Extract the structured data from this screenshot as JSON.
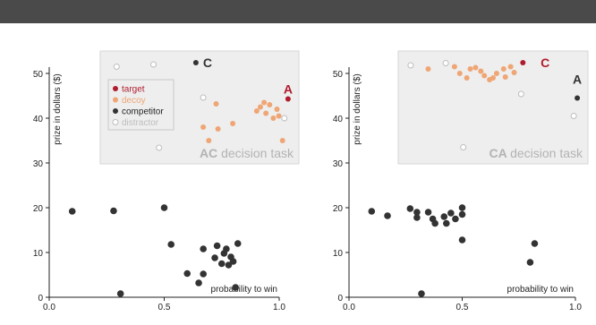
{
  "colors": {
    "target": "#b01c2e",
    "decoy": "#efa574",
    "competitor": "#333333",
    "distractor": "#bdbdbd",
    "inset_bg": "#eeeeee",
    "inset_border": "#d6d6d6",
    "title_gray": "#b3b3b3"
  },
  "legend": {
    "target": "target",
    "decoy": "decoy",
    "competitor": "competitor",
    "distractor": "distractor"
  },
  "chart_data": [
    {
      "type": "scatter",
      "xlabel": "probability to win",
      "ylabel": "prize in dollars ($)",
      "xlim": [
        0,
        1
      ],
      "ylim": [
        0,
        55
      ],
      "xticks": [
        "0.0",
        "0.5",
        "1.0"
      ],
      "yticks": [
        "0",
        "10",
        "20",
        "30",
        "40",
        "50"
      ],
      "main_points": [
        [
          0.1,
          19.2
        ],
        [
          0.28,
          19.3
        ],
        [
          0.31,
          0.8
        ],
        [
          0.5,
          20.0
        ],
        [
          0.53,
          11.8
        ],
        [
          0.6,
          5.3
        ],
        [
          0.65,
          3.2
        ],
        [
          0.67,
          10.8
        ],
        [
          0.67,
          5.2
        ],
        [
          0.72,
          8.8
        ],
        [
          0.73,
          11.5
        ],
        [
          0.75,
          7.5
        ],
        [
          0.76,
          9.8
        ],
        [
          0.77,
          10.8
        ],
        [
          0.78,
          7.2
        ],
        [
          0.79,
          9.0
        ],
        [
          0.8,
          8.0
        ],
        [
          0.81,
          2.2
        ],
        [
          0.82,
          12.0
        ]
      ],
      "inset": {
        "title_bold": "AC",
        "title_rest": "decision task",
        "letters": [
          {
            "text": "C",
            "x": 0.48,
            "y": 52.4,
            "role": "competitor"
          },
          {
            "text": "A",
            "x": 0.98,
            "y": 44.3,
            "role": "target"
          }
        ],
        "target": [
          [
            0.98,
            44.3
          ]
        ],
        "competitor": [
          [
            0.48,
            52.4
          ]
        ],
        "decoy": [
          [
            0.59,
            43.2
          ],
          [
            0.52,
            38.0
          ],
          [
            0.55,
            35.0
          ],
          [
            0.6,
            37.6
          ],
          [
            0.68,
            38.8
          ],
          [
            0.81,
            41.6
          ],
          [
            0.85,
            43.5
          ],
          [
            0.88,
            43.0
          ],
          [
            0.86,
            41.1
          ],
          [
            0.9,
            40.0
          ],
          [
            0.83,
            42.5
          ],
          [
            0.92,
            42.0
          ],
          [
            0.95,
            35.0
          ],
          [
            0.93,
            40.5
          ]
        ],
        "distractor": [
          [
            0.05,
            51.5
          ],
          [
            0.25,
            52.0
          ],
          [
            0.28,
            33.4
          ],
          [
            0.52,
            44.6
          ],
          [
            0.96,
            40.0
          ]
        ]
      }
    },
    {
      "type": "scatter",
      "xlabel": "probability to win",
      "ylabel": "prize in dollars ($)",
      "xlim": [
        0,
        1
      ],
      "ylim": [
        0,
        55
      ],
      "xticks": [
        "0.0",
        "0.5",
        "1.0"
      ],
      "yticks": [
        "0",
        "10",
        "20",
        "30",
        "40",
        "50"
      ],
      "main_points": [
        [
          0.1,
          19.2
        ],
        [
          0.17,
          18.2
        ],
        [
          0.27,
          19.8
        ],
        [
          0.3,
          19.0
        ],
        [
          0.3,
          17.8
        ],
        [
          0.35,
          19.0
        ],
        [
          0.37,
          17.5
        ],
        [
          0.38,
          16.5
        ],
        [
          0.42,
          18.0
        ],
        [
          0.43,
          16.5
        ],
        [
          0.45,
          18.8
        ],
        [
          0.47,
          17.5
        ],
        [
          0.5,
          20.0
        ],
        [
          0.5,
          18.5
        ],
        [
          0.5,
          12.8
        ],
        [
          0.32,
          0.8
        ],
        [
          0.8,
          7.8
        ],
        [
          0.82,
          12.0
        ]
      ],
      "inset": {
        "title_bold": "CA",
        "title_rest": "decision task",
        "letters": [
          {
            "text": "C",
            "x": 0.73,
            "y": 52.4,
            "role": "target"
          },
          {
            "text": "A",
            "x": 0.98,
            "y": 46.5,
            "role": "competitor"
          }
        ],
        "target": [
          [
            0.67,
            52.4
          ]
        ],
        "competitor": [
          [
            0.98,
            44.5
          ]
        ],
        "decoy": [
          [
            0.13,
            51.0
          ],
          [
            0.28,
            51.5
          ],
          [
            0.31,
            50.0
          ],
          [
            0.35,
            49.0
          ],
          [
            0.4,
            51.3
          ],
          [
            0.43,
            50.5
          ],
          [
            0.45,
            49.5
          ],
          [
            0.5,
            49.0
          ],
          [
            0.52,
            50.0
          ],
          [
            0.56,
            51.0
          ],
          [
            0.57,
            49.2
          ],
          [
            0.6,
            51.5
          ],
          [
            0.37,
            51.0
          ],
          [
            0.48,
            48.6
          ],
          [
            0.62,
            50.2
          ]
        ],
        "distractor": [
          [
            0.03,
            51.8
          ],
          [
            0.23,
            52.3
          ],
          [
            0.33,
            33.5
          ],
          [
            0.66,
            45.4
          ],
          [
            0.96,
            40.5
          ]
        ]
      }
    }
  ]
}
